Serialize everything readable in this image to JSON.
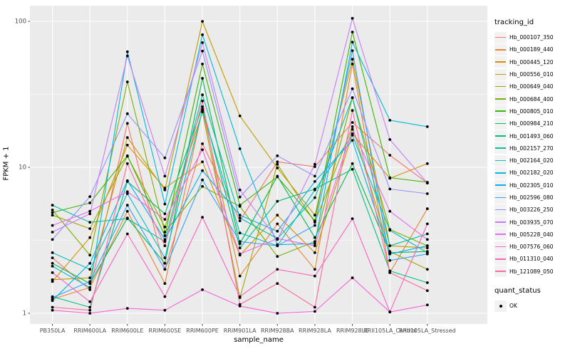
{
  "chart_data": {
    "type": "line",
    "title": "",
    "xlabel": "sample_name",
    "ylabel": "FPKM + 1",
    "y_scale": "log10",
    "ylim": [
      0.85,
      128
    ],
    "y_ticks": [
      1,
      10,
      100
    ],
    "y_tick_labels": [
      "1",
      "10",
      "100"
    ],
    "y_minor_ticks": [
      3.1623,
      31.623
    ],
    "grid": true,
    "legend_position": "right",
    "categories": [
      "PB350LA",
      "RRIM600LA",
      "RRIM600LE",
      "RRIM600SE",
      "RRIM600PE",
      "RRIM901LA",
      "RRIM928BA",
      "RRIM928LA",
      "RRIM928LE",
      "RRII105LA_Control",
      "RRII105LA_Stressed"
    ],
    "color_legend_title": "tracking_id",
    "shape_legend_title": "quant_status",
    "shape_legend_label": "OK",
    "series": [
      {
        "name": "Hb_000107_350",
        "color": "#F8766D",
        "values": [
          2.4,
          1.45,
          20,
          2.0,
          14.5,
          4.3,
          10.9,
          10.1,
          20.3,
          12.1,
          7.8
        ]
      },
      {
        "name": "Hb_000189_440",
        "color": "#EA8331",
        "values": [
          1.25,
          1.5,
          5.0,
          1.6,
          25,
          1.8,
          4.1,
          2.0,
          51,
          1.9,
          5.2
        ]
      },
      {
        "name": "Hb_000445_120",
        "color": "#D89000",
        "values": [
          1.65,
          3.3,
          14.2,
          7.2,
          10.9,
          2.5,
          4.7,
          2.6,
          17,
          8.4,
          10.6
        ]
      },
      {
        "name": "Hb_000556_010",
        "color": "#C09B00",
        "values": [
          1.7,
          1.75,
          16,
          7.0,
          100,
          22.5,
          9.9,
          4.7,
          55,
          2.9,
          2.8
        ]
      },
      {
        "name": "Hb_000649_040",
        "color": "#A3A500",
        "values": [
          4.7,
          3.8,
          11.9,
          3.9,
          24,
          1.28,
          10.5,
          4.2,
          19,
          2.65,
          2.0
        ]
      },
      {
        "name": "Hb_000684_400",
        "color": "#7CAE00",
        "values": [
          5.1,
          2.5,
          38.5,
          3.6,
          7.4,
          5.4,
          2.45,
          3.1,
          30,
          3.75,
          2.9
        ]
      },
      {
        "name": "Hb_000805_010",
        "color": "#39B600",
        "values": [
          4.9,
          5.7,
          12,
          3.4,
          51,
          5.5,
          8.6,
          4.3,
          84.5,
          8.5,
          7.9
        ]
      },
      {
        "name": "Hb_000984_210",
        "color": "#00BB4E",
        "values": [
          2.2,
          1.6,
          4.5,
          2.2,
          40.7,
          3.0,
          8.7,
          3.3,
          10.6,
          2.6,
          2.65
        ]
      },
      {
        "name": "Hb_001493_060",
        "color": "#00BF7D",
        "values": [
          1.3,
          1.1,
          8.0,
          4.8,
          26,
          2.8,
          5.85,
          7.1,
          9.7,
          1.95,
          1.62
        ]
      },
      {
        "name": "Hb_002157_270",
        "color": "#00C1A3",
        "values": [
          5.5,
          4.2,
          4.45,
          3.1,
          31.4,
          4.5,
          3.25,
          6.2,
          30,
          2.9,
          3.5
        ]
      },
      {
        "name": "Hb_002164_020",
        "color": "#00BFC4",
        "values": [
          2.6,
          2.0,
          6.6,
          2.4,
          24.5,
          3.55,
          2.9,
          7.0,
          16.6,
          3.7,
          2.6
        ]
      },
      {
        "name": "Hb_002182_020",
        "color": "#00BAE0",
        "values": [
          2.1,
          1.5,
          62,
          5.6,
          81,
          13.4,
          2.95,
          3.0,
          72,
          21,
          19
        ]
      },
      {
        "name": "Hb_002305_010",
        "color": "#00B0F6",
        "values": [
          1.22,
          2.2,
          8.1,
          3.2,
          9.5,
          4.7,
          3.65,
          8.0,
          15.3,
          2.55,
          2.9
        ]
      },
      {
        "name": "Hb_002596_080",
        "color": "#35A2FF",
        "values": [
          1.28,
          1.65,
          5.5,
          2.0,
          8.2,
          3.1,
          2.9,
          4.0,
          63,
          2.3,
          2.55
        ]
      },
      {
        "name": "Hb_003226_250",
        "color": "#9590FF",
        "values": [
          3.2,
          6.3,
          23.3,
          11.6,
          62.6,
          6.25,
          12.0,
          8.7,
          34.5,
          7.1,
          6.6
        ]
      },
      {
        "name": "Hb_003935_070",
        "color": "#C77CFF",
        "values": [
          3.6,
          4.8,
          58,
          8.7,
          71.5,
          7.0,
          3.2,
          10.5,
          105,
          15.5,
          7.8
        ]
      },
      {
        "name": "Hb_005228_040",
        "color": "#E76BF3",
        "values": [
          4.0,
          5.0,
          6.8,
          4.4,
          13.2,
          2.55,
          3.25,
          2.9,
          18.2,
          5.0,
          3.2
        ]
      },
      {
        "name": "Hb_007576_060",
        "color": "#FA62DB",
        "values": [
          1.05,
          1.0,
          1.08,
          1.05,
          1.45,
          1.12,
          1.0,
          1.03,
          1.75,
          1.02,
          1.14
        ]
      },
      {
        "name": "Hb_011310_040",
        "color": "#FF62BC",
        "values": [
          1.9,
          1.2,
          3.5,
          1.3,
          4.55,
          1.3,
          2.0,
          1.8,
          4.45,
          1.02,
          4.1
        ]
      },
      {
        "name": "Hb_121089_050",
        "color": "#FF6A98",
        "values": [
          1.1,
          1.05,
          10.6,
          2.9,
          28.5,
          1.15,
          1.6,
          1.1,
          24.5,
          1.9,
          1.43
        ]
      }
    ]
  },
  "style": {
    "panel_bg": "#EBEBEB",
    "grid_color": "#FFFFFF",
    "point_color": "#000000",
    "tick_text_color": "#4D4D4D",
    "tick_mark_color": "#333333",
    "legend_key_bg": "#F2F2F2"
  }
}
